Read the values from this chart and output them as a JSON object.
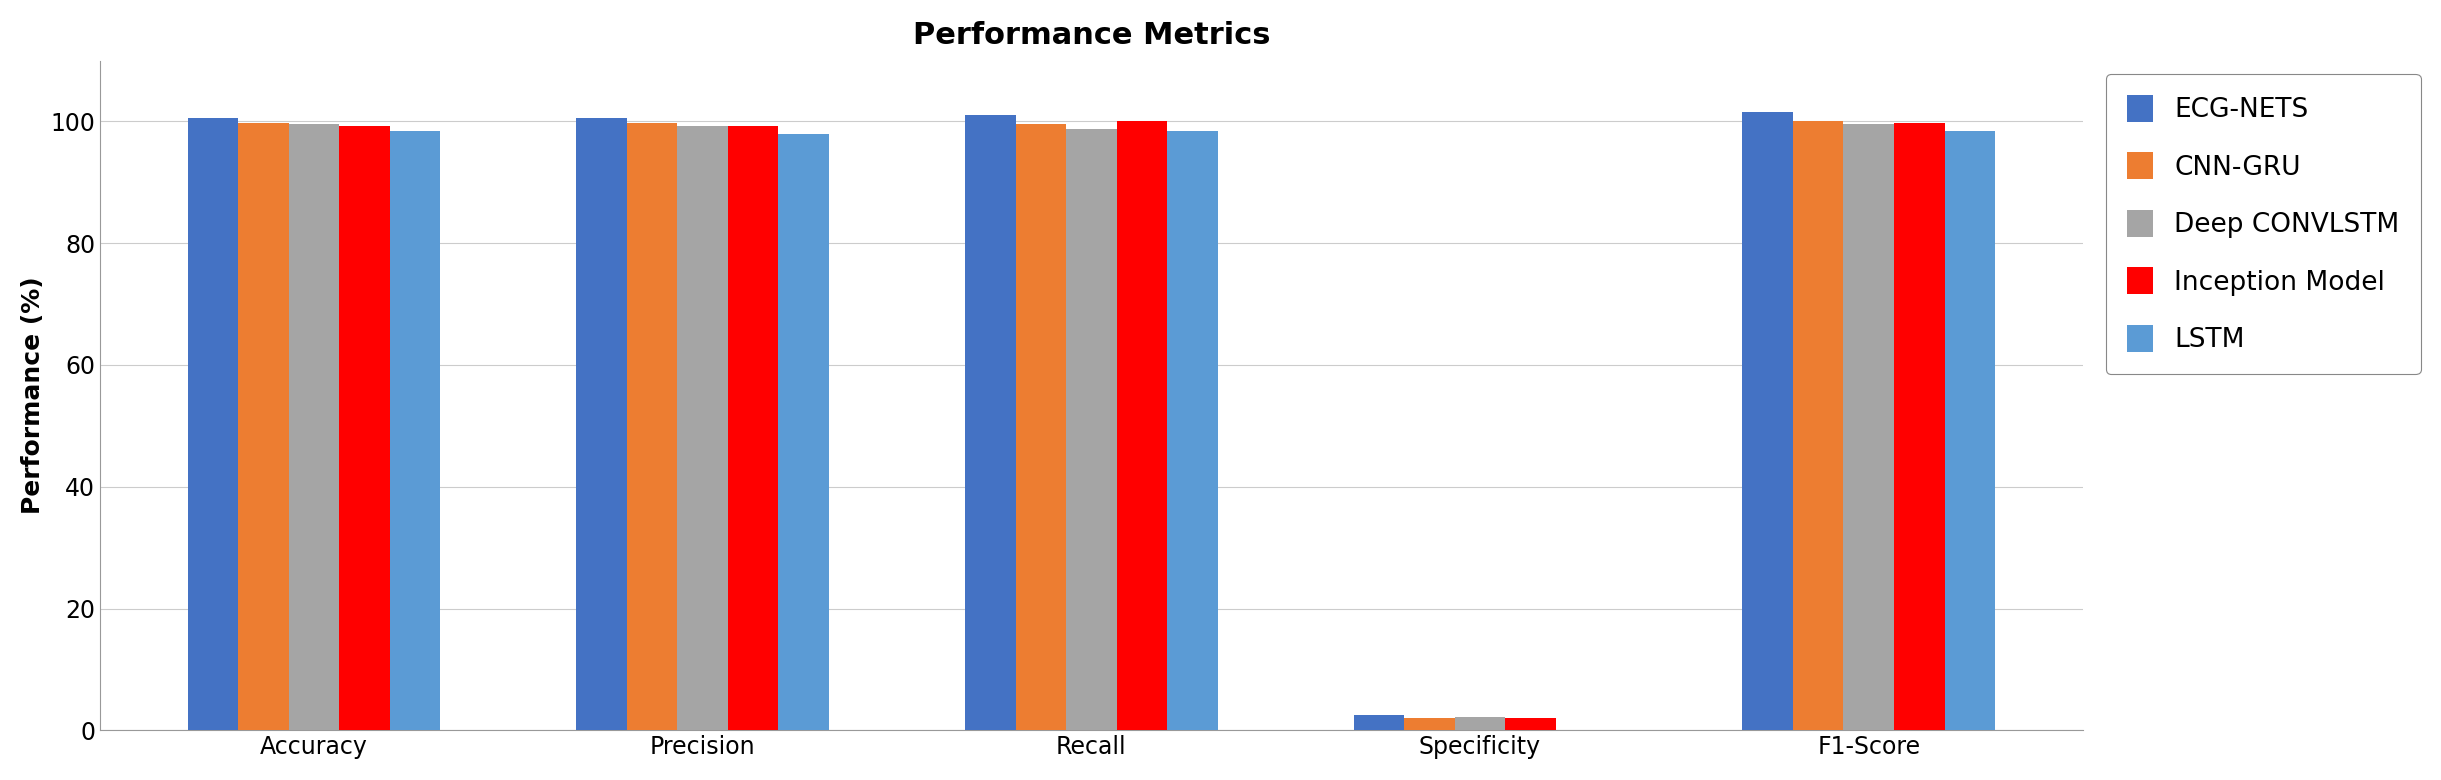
{
  "title": "Performance Metrics",
  "ylabel": "Performance (%)",
  "categories": [
    "Accuracy",
    "Precision",
    "Recall",
    "Specificity",
    "F1-Score"
  ],
  "methods": [
    "ECG-NETS",
    "CNN-GRU",
    "Deep CONVLSTM",
    "Inception Model",
    "LSTM"
  ],
  "colors": [
    "#4472C4",
    "#ED7D31",
    "#A5A5A5",
    "#FF0000",
    "#5B9BD5"
  ],
  "values": {
    "ECG-NETS": [
      100.5,
      100.5,
      101.0,
      2.5,
      101.5
    ],
    "CNN-GRU": [
      99.8,
      99.8,
      99.5,
      2.0,
      100.0
    ],
    "Deep CONVLSTM": [
      99.5,
      99.3,
      98.8,
      2.2,
      99.5
    ],
    "Inception Model": [
      99.3,
      99.3,
      100.0,
      2.0,
      99.8
    ],
    "LSTM": [
      98.5,
      98.0,
      98.5,
      0.0,
      98.5
    ]
  },
  "ylim": [
    0,
    110
  ],
  "yticks": [
    0,
    20,
    40,
    60,
    80,
    100
  ],
  "legend_fontsize": 19,
  "title_fontsize": 22,
  "axis_label_fontsize": 18,
  "tick_fontsize": 17,
  "bar_width": 0.13,
  "figure_width": 24.41,
  "figure_height": 7.8
}
